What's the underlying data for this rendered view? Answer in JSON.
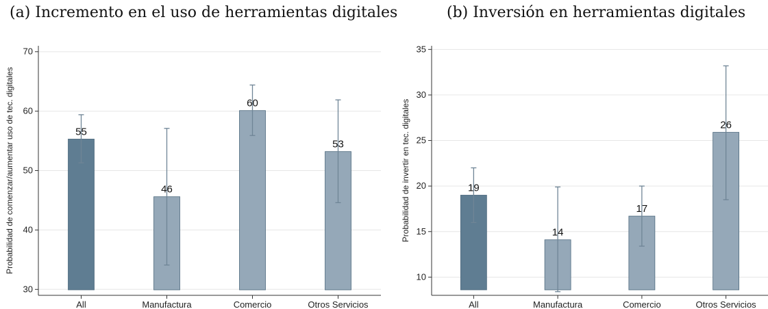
{
  "chart_data": [
    {
      "type": "bar",
      "title": "(a) Incremento en el uso de herramientas digitales",
      "xlabel": "",
      "ylabel": "Probabilidad de comenzar/aumentar uso de tec. digitales",
      "categories": [
        "All",
        "Manufactura",
        "Comercio",
        "Otros Servicios"
      ],
      "values": [
        55.3,
        45.6,
        60.1,
        53.2
      ],
      "data_labels": [
        "55",
        "46",
        "60",
        "53"
      ],
      "ci_low": [
        51.3,
        34.1,
        55.9,
        44.6
      ],
      "ci_high": [
        59.4,
        57.1,
        64.4,
        61.9
      ],
      "ylim": [
        29,
        71
      ],
      "yticks": [
        30,
        40,
        50,
        60,
        70
      ],
      "grid": true,
      "colors": [
        "#5f7d92",
        "#95a8b8",
        "#95a8b8",
        "#95a8b8"
      ]
    },
    {
      "type": "bar",
      "title": "(b) Inversión en herramientas digitales",
      "xlabel": "",
      "ylabel": "Probabilidad de invertir en tec. digitales",
      "categories": [
        "All",
        "Manufactura",
        "Comercio",
        "Otros Servicios"
      ],
      "values": [
        19.0,
        14.1,
        16.7,
        25.9
      ],
      "data_labels": [
        "19",
        "14",
        "17",
        "26"
      ],
      "ci_low": [
        16.0,
        8.4,
        13.4,
        18.5
      ],
      "ci_high": [
        22.0,
        19.9,
        20.0,
        33.2
      ],
      "ylim": [
        8.0,
        35.4
      ],
      "yticks": [
        10,
        15,
        20,
        25,
        30,
        35
      ],
      "grid": true,
      "colors": [
        "#5f7d92",
        "#95a8b8",
        "#95a8b8",
        "#95a8b8"
      ]
    }
  ]
}
